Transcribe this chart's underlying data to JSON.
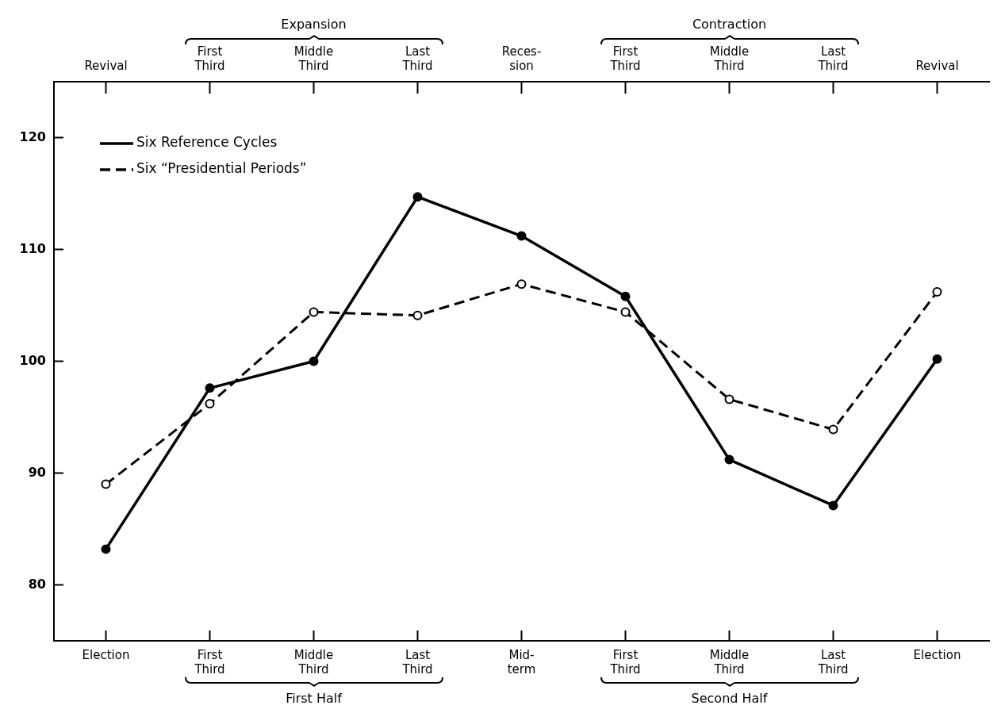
{
  "chart_data": {
    "type": "line",
    "categories": [
      "Election",
      "First\nThird",
      "Middle\nThird",
      "Last\nThird",
      "Mid-\nterm",
      "First\nThird",
      "Middle\nThird",
      "Last\nThird",
      "Election"
    ],
    "ylim": [
      75,
      125
    ],
    "yticks": [
      80,
      90,
      100,
      110,
      120
    ],
    "series": [
      {
        "name": "Six Reference Cycles",
        "type": "line",
        "color": "#000000",
        "line_style": "solid",
        "values": [
          83.2,
          97.6,
          100.0,
          114.7,
          111.2,
          105.8,
          91.2,
          87.1,
          100.2
        ]
      },
      {
        "name": "Six “Presidential Periods”",
        "type": "line",
        "color": "#000000",
        "line_style": "dashed",
        "values": [
          89.0,
          96.2,
          104.4,
          104.1,
          106.9,
          104.4,
          96.6,
          93.9,
          106.2
        ]
      }
    ],
    "annotations": [
      "Revival",
      "First\nThird",
      "Middle\nThird",
      "Last\nThird",
      "Reces-\nsion",
      "First\nThird",
      "Middle\nThird",
      "Last\nThird",
      "Revival",
      "Expansion",
      "Contraction",
      "First Half",
      "Second Half"
    ],
    "marker": "circle",
    "legend": "top left"
  }
}
